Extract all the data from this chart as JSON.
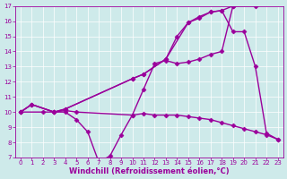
{
  "series": [
    {
      "name": "line_upper",
      "x": [
        0,
        1,
        3,
        4,
        10,
        11,
        13,
        15,
        16,
        17,
        18,
        19,
        21
      ],
      "y": [
        10,
        10.5,
        10,
        10.2,
        12.2,
        12.5,
        13.5,
        15.9,
        16.3,
        16.6,
        16.7,
        17.0,
        17.0
      ],
      "color": "#9b009b",
      "marker": "D",
      "markersize": 2.5,
      "linewidth": 1.0
    },
    {
      "name": "line_peak_drop",
      "x": [
        0,
        1,
        3,
        4,
        10,
        11,
        13,
        14,
        15,
        16,
        17,
        18,
        19,
        20,
        21,
        22,
        23
      ],
      "y": [
        10,
        10.5,
        10,
        10.2,
        12.2,
        12.5,
        13.5,
        15.0,
        15.9,
        16.2,
        16.6,
        16.7,
        15.3,
        15.3,
        13.0,
        8.6,
        8.2
      ],
      "color": "#9b009b",
      "marker": "D",
      "markersize": 2.5,
      "linewidth": 1.0
    },
    {
      "name": "line_dip",
      "x": [
        0,
        2,
        3,
        4,
        5,
        6,
        7,
        8,
        9,
        10,
        11,
        12,
        13,
        14,
        15,
        16,
        17,
        18,
        19,
        20,
        21,
        22,
        23
      ],
      "y": [
        10,
        10,
        10,
        10,
        9.5,
        8.7,
        6.7,
        7.1,
        8.5,
        9.8,
        9.9,
        9.8,
        9.8,
        9.8,
        9.7,
        9.6,
        9.5,
        9.3,
        9.1,
        8.9,
        8.7,
        8.5,
        8.2
      ],
      "color": "#9b009b",
      "marker": "D",
      "markersize": 2.5,
      "linewidth": 1.0
    },
    {
      "name": "line_mid",
      "x": [
        0,
        1,
        3,
        4,
        5,
        10,
        11,
        12,
        13,
        14,
        15,
        16,
        17,
        18,
        19
      ],
      "y": [
        10,
        10.5,
        10,
        10.1,
        10.0,
        9.8,
        11.5,
        13.2,
        13.4,
        13.2,
        13.3,
        13.5,
        13.8,
        14.0,
        17.0
      ],
      "color": "#9b009b",
      "marker": "D",
      "markersize": 2.5,
      "linewidth": 1.0
    }
  ],
  "xlim": [
    -0.5,
    23.5
  ],
  "ylim": [
    7,
    17
  ],
  "xticks": [
    0,
    1,
    2,
    3,
    4,
    5,
    6,
    7,
    8,
    9,
    10,
    11,
    12,
    13,
    14,
    15,
    16,
    17,
    18,
    19,
    20,
    21,
    22,
    23
  ],
  "yticks": [
    7,
    8,
    9,
    10,
    11,
    12,
    13,
    14,
    15,
    16,
    17
  ],
  "xlabel": "Windchill (Refroidissement éolien,°C)",
  "background_color": "#ceeaea",
  "grid_color": "#ffffff",
  "line_color": "#9b009b",
  "tick_color": "#9b009b",
  "label_color": "#9b009b",
  "tick_fontsize": 5.0,
  "xlabel_fontsize": 6.0
}
